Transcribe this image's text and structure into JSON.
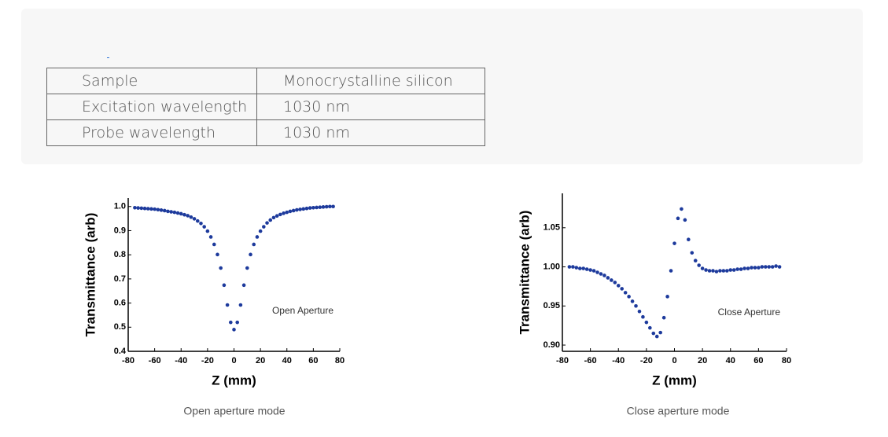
{
  "table": {
    "rows": [
      [
        "Sample",
        "Monocrystalline silicon"
      ],
      [
        "Excitation wavelength",
        "1030 nm"
      ],
      [
        "Probe wavelength",
        "1030 nm"
      ]
    ]
  },
  "chart_data": [
    {
      "type": "scatter",
      "y_label": "Transmittance (arb)",
      "x_label": "Z (mm)",
      "annotation": "Open Aperture",
      "caption": "Open aperture mode",
      "color": "#1d3a9c",
      "xlim": [
        -80,
        80
      ],
      "xticks": [
        -80,
        -60,
        -40,
        -20,
        0,
        20,
        40,
        60,
        80
      ],
      "ylim": [
        0.4,
        1.035
      ],
      "yticks": [
        0.4,
        0.5,
        0.6,
        0.7,
        0.8,
        0.9,
        {
          "value": 1,
          "label": "1.0"
        }
      ],
      "x": [
        -75,
        -72.5,
        -70,
        -67.5,
        -65,
        -62.5,
        -60,
        -57.5,
        -55,
        -52.5,
        -50,
        -47.5,
        -45,
        -42.5,
        -40,
        -37.5,
        -35,
        -32.5,
        -30,
        -27.5,
        -25,
        -22.5,
        -20,
        -17.5,
        -15,
        -12.5,
        -10,
        -7.5,
        -5,
        -2.5,
        0,
        2.5,
        5,
        7.5,
        10,
        12.5,
        15,
        17.5,
        20,
        22.5,
        25,
        27.5,
        30,
        32.5,
        35,
        37.5,
        40,
        42.5,
        45,
        47.5,
        50,
        52.5,
        55,
        57.5,
        60,
        62.5,
        65,
        67.5,
        70,
        72.5,
        75
      ],
      "values": [
        0.995,
        0.994,
        0.993,
        0.992,
        0.991,
        0.99,
        0.989,
        0.987,
        0.985,
        0.983,
        0.98,
        0.978,
        0.976,
        0.973,
        0.97,
        0.966,
        0.962,
        0.956,
        0.949,
        0.94,
        0.93,
        0.916,
        0.898,
        0.874,
        0.843,
        0.801,
        0.745,
        0.674,
        0.592,
        0.52,
        0.49,
        0.52,
        0.592,
        0.674,
        0.745,
        0.801,
        0.843,
        0.874,
        0.898,
        0.916,
        0.932,
        0.944,
        0.954,
        0.961,
        0.967,
        0.972,
        0.976,
        0.98,
        0.983,
        0.986,
        0.988,
        0.99,
        0.992,
        0.994,
        0.995,
        0.996,
        0.997,
        0.998,
        0.999,
        1.0,
        1.0
      ]
    },
    {
      "type": "scatter",
      "y_label": "Transmittance (arb)",
      "x_label": "Z (mm)",
      "annotation": "Close Aperture",
      "caption": "Close aperture mode",
      "color": "#1d3a9c",
      "xlim": [
        -80,
        80
      ],
      "xticks": [
        -80,
        -60,
        -40,
        -20,
        0,
        20,
        40,
        60,
        80
      ],
      "ylim": [
        0.892,
        1.094
      ],
      "yticks": [
        {
          "value": 0.9,
          "label": "0.90"
        },
        0.95,
        {
          "value": 1,
          "label": "1.00"
        },
        1.05
      ],
      "x": [
        -75,
        -72.5,
        -70,
        -67.5,
        -65,
        -62.5,
        -60,
        -57.5,
        -55,
        -52.5,
        -50,
        -47.5,
        -45,
        -42.5,
        -40,
        -37.5,
        -35,
        -32.5,
        -30,
        -27.5,
        -25,
        -22.5,
        -20,
        -17.5,
        -15,
        -12.5,
        -10,
        -7.5,
        -5,
        -2.5,
        0,
        2.5,
        5,
        7.5,
        10,
        12.5,
        15,
        17.5,
        20,
        22.5,
        25,
        27.5,
        30,
        32.5,
        35,
        37.5,
        40,
        42.5,
        45,
        47.5,
        50,
        52.5,
        55,
        57.5,
        60,
        62.5,
        65,
        67.5,
        70,
        72.5,
        75
      ],
      "values": [
        1.0,
        1.0,
        0.999,
        0.998,
        0.998,
        0.997,
        0.996,
        0.995,
        0.993,
        0.991,
        0.989,
        0.986,
        0.983,
        0.98,
        0.976,
        0.972,
        0.967,
        0.962,
        0.956,
        0.95,
        0.943,
        0.936,
        0.929,
        0.922,
        0.915,
        0.911,
        0.916,
        0.935,
        0.962,
        0.995,
        1.03,
        1.062,
        1.074,
        1.06,
        1.035,
        1.018,
        1.008,
        1.002,
        0.998,
        0.996,
        0.995,
        0.995,
        0.994,
        0.995,
        0.995,
        0.995,
        0.996,
        0.996,
        0.997,
        0.997,
        0.998,
        0.998,
        0.999,
        0.999,
        0.999,
        1.0,
        1.0,
        1.0,
        1.0,
        1.001,
        1.0
      ]
    }
  ]
}
